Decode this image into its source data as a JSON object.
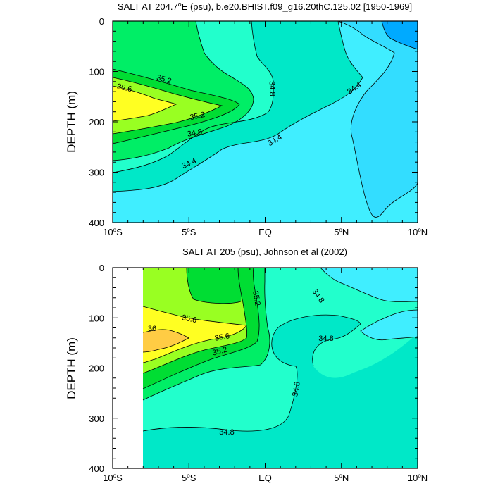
{
  "chart_data": [
    {
      "type": "contour",
      "title": "SALT AT 204.7°E (psu), b.e20.BHIST.f09_g16.20thC.125.02 [1950-1969]",
      "title_parts": {
        "prefix": "SALT AT 204.7",
        "superscript": "o",
        "suffix": "E (psu), b.e20.BHIST.f09_g16.20thC.125.02 [1950-1969]"
      },
      "xlabel": "",
      "ylabel": "DEPTH (m)",
      "xlim": [
        -10,
        10
      ],
      "ylim": [
        400,
        0
      ],
      "x_ticks": [
        {
          "value": -10,
          "num": "10",
          "hemi": "S"
        },
        {
          "value": -5,
          "num": "5",
          "hemi": "S"
        },
        {
          "value": 0,
          "num": "EQ",
          "hemi": ""
        },
        {
          "value": 5,
          "num": "5",
          "hemi": "N"
        },
        {
          "value": 10,
          "num": "10",
          "hemi": "N"
        }
      ],
      "y_ticks": [
        "0",
        "100",
        "200",
        "300",
        "400"
      ],
      "contour_labels": [
        "35.6",
        "35.2",
        "35.2",
        "34.8",
        "34.4",
        "34.8",
        "34.4",
        "34.4"
      ]
    },
    {
      "type": "contour",
      "title": "SALT AT 205 (psu), Johnson et al (2002)",
      "xlabel": "",
      "ylabel": "DEPTH (m)",
      "xlim": [
        -10,
        10
      ],
      "ylim": [
        400,
        0
      ],
      "data_extent_x": [
        -8,
        10
      ],
      "x_ticks": [
        {
          "value": -10,
          "num": "10",
          "hemi": "S"
        },
        {
          "value": -5,
          "num": "5",
          "hemi": "S"
        },
        {
          "value": 0,
          "num": "EQ",
          "hemi": ""
        },
        {
          "value": 5,
          "num": "5",
          "hemi": "N"
        },
        {
          "value": 10,
          "num": "10",
          "hemi": "N"
        }
      ],
      "y_ticks": [
        "0",
        "100",
        "200",
        "300",
        "400"
      ],
      "contour_labels": [
        "35.6",
        "36",
        "35.6",
        "35.2",
        "35.2",
        "34.8",
        "34.8",
        "34.8",
        "34.8"
      ]
    }
  ],
  "colors": {
    "c34_0": "#00aaff",
    "c34_2": "#33ddff",
    "c34_4": "#40eeff",
    "c34_6": "#00e8c8",
    "c34_8": "#22ffcc",
    "c35_0": "#00ee66",
    "c35_2": "#00dd33",
    "c35_4": "#99ff22",
    "c35_6": "#ffff22",
    "c35_8": "#ffcc44"
  }
}
